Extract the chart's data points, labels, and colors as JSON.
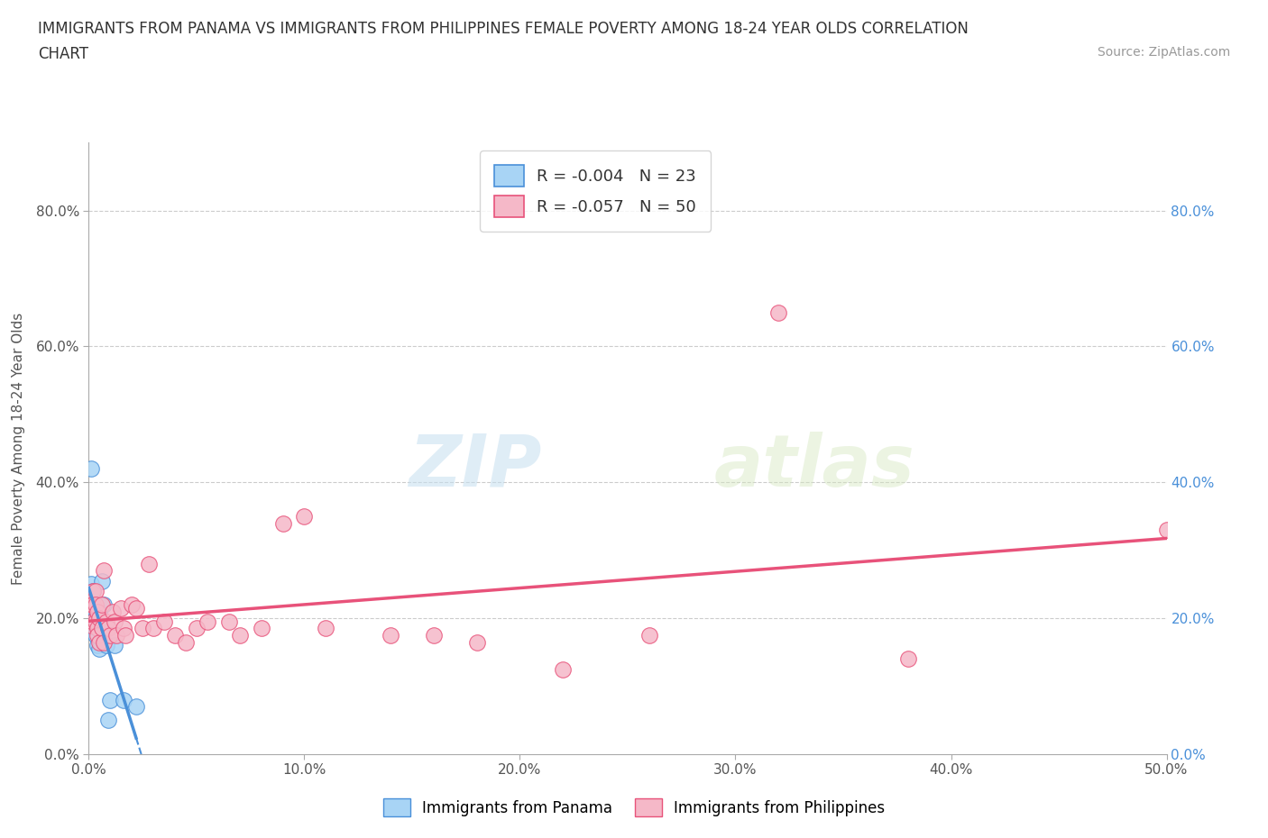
{
  "title_line1": "IMMIGRANTS FROM PANAMA VS IMMIGRANTS FROM PHILIPPINES FEMALE POVERTY AMONG 18-24 YEAR OLDS CORRELATION",
  "title_line2": "CHART",
  "source": "Source: ZipAtlas.com",
  "ylabel": "Female Poverty Among 18-24 Year Olds",
  "xlim": [
    0.0,
    0.5
  ],
  "ylim": [
    0.0,
    0.9
  ],
  "xtick_labels": [
    "0.0%",
    "10.0%",
    "20.0%",
    "30.0%",
    "40.0%",
    "50.0%"
  ],
  "ytick_labels": [
    "0.0%",
    "20.0%",
    "40.0%",
    "60.0%",
    "80.0%"
  ],
  "xtick_values": [
    0.0,
    0.1,
    0.2,
    0.3,
    0.4,
    0.5
  ],
  "ytick_values": [
    0.0,
    0.2,
    0.4,
    0.6,
    0.8
  ],
  "hlines": [
    0.2,
    0.4,
    0.6,
    0.8
  ],
  "color_panama": "#a8d4f5",
  "color_philippines": "#f5b8c8",
  "color_trendline_panama": "#4a90d9",
  "color_trendline_philippines": "#e8527a",
  "watermark_zip": "ZIP",
  "watermark_atlas": "atlas",
  "panama_x": [
    0.001,
    0.001,
    0.001,
    0.002,
    0.002,
    0.002,
    0.002,
    0.003,
    0.003,
    0.003,
    0.003,
    0.004,
    0.004,
    0.005,
    0.005,
    0.006,
    0.007,
    0.008,
    0.009,
    0.01,
    0.012,
    0.016,
    0.022
  ],
  "panama_y": [
    0.42,
    0.25,
    0.22,
    0.24,
    0.22,
    0.21,
    0.195,
    0.21,
    0.2,
    0.185,
    0.175,
    0.185,
    0.16,
    0.155,
    0.21,
    0.255,
    0.22,
    0.16,
    0.05,
    0.08,
    0.16,
    0.08,
    0.07
  ],
  "philippines_x": [
    0.001,
    0.001,
    0.002,
    0.002,
    0.002,
    0.003,
    0.003,
    0.003,
    0.004,
    0.004,
    0.004,
    0.005,
    0.005,
    0.006,
    0.006,
    0.007,
    0.007,
    0.008,
    0.009,
    0.01,
    0.011,
    0.012,
    0.013,
    0.015,
    0.016,
    0.017,
    0.02,
    0.022,
    0.025,
    0.028,
    0.03,
    0.035,
    0.04,
    0.045,
    0.05,
    0.055,
    0.065,
    0.07,
    0.08,
    0.09,
    0.1,
    0.11,
    0.14,
    0.16,
    0.18,
    0.22,
    0.26,
    0.32,
    0.38,
    0.5
  ],
  "philippines_y": [
    0.22,
    0.19,
    0.24,
    0.22,
    0.195,
    0.24,
    0.22,
    0.195,
    0.21,
    0.185,
    0.175,
    0.2,
    0.165,
    0.22,
    0.185,
    0.27,
    0.165,
    0.195,
    0.185,
    0.175,
    0.21,
    0.195,
    0.175,
    0.215,
    0.185,
    0.175,
    0.22,
    0.215,
    0.185,
    0.28,
    0.185,
    0.195,
    0.175,
    0.165,
    0.185,
    0.195,
    0.195,
    0.175,
    0.185,
    0.34,
    0.35,
    0.185,
    0.175,
    0.175,
    0.165,
    0.125,
    0.175,
    0.65,
    0.14,
    0.33
  ]
}
